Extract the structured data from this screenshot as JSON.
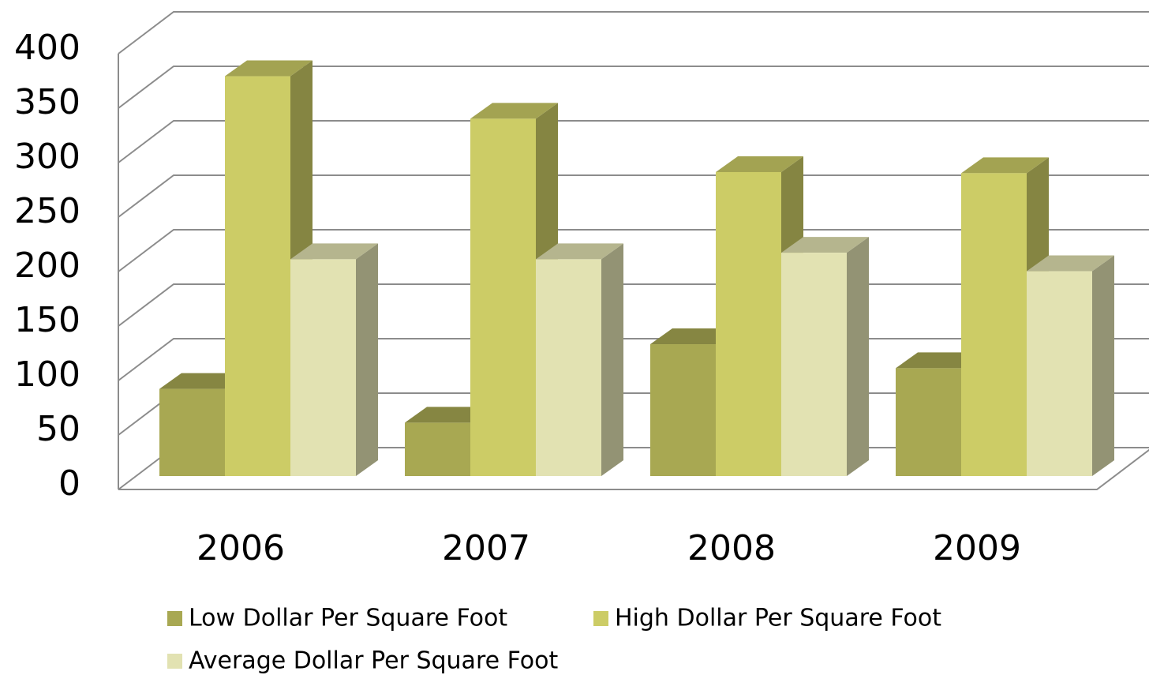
{
  "chart_data": {
    "type": "bar3d",
    "categories": [
      "2006",
      "2007",
      "2008",
      "2009"
    ],
    "series": [
      {
        "name": "Low Dollar Per Square Foot",
        "color": "#a8a852",
        "values": [
          80,
          49,
          121,
          99
        ]
      },
      {
        "name": "High Dollar Per Square Foot",
        "color": "#cccc66",
        "values": [
          367,
          328,
          279,
          278
        ]
      },
      {
        "name": "Average Dollar Per Square Foot",
        "color": "#e2e2b2",
        "values": [
          199,
          199,
          205,
          188
        ]
      }
    ],
    "ylim": [
      0,
      400
    ],
    "yticks": [
      0,
      50,
      100,
      150,
      200,
      250,
      300,
      350,
      400
    ],
    "grid": true
  }
}
